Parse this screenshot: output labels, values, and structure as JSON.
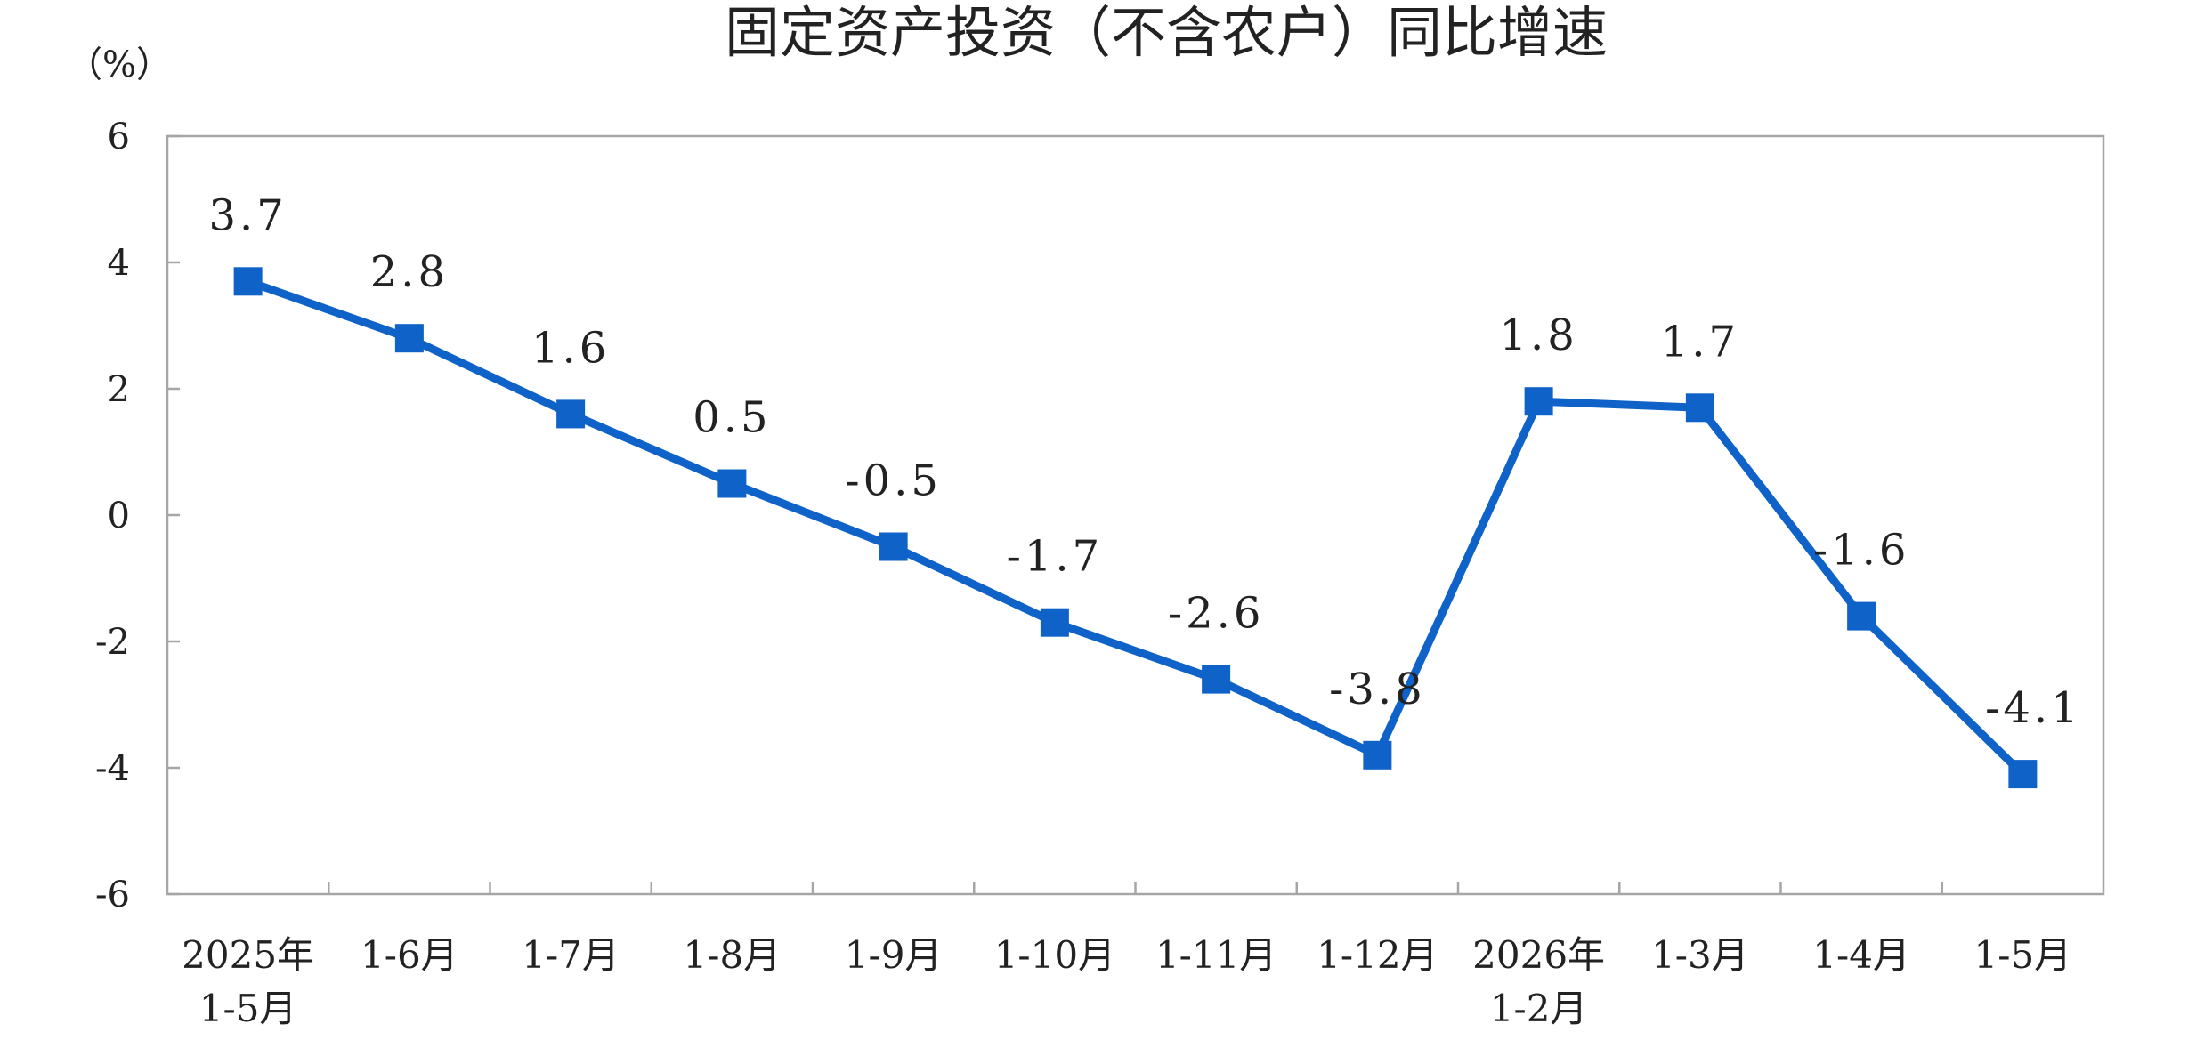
{
  "chart_data": {
    "type": "line",
    "title": "固定资产投资（不含农户）同比增速",
    "unit_label": "（%）",
    "categories": [
      [
        "2025年",
        "1-5月"
      ],
      [
        "1-6月"
      ],
      [
        "1-7月"
      ],
      [
        "1-8月"
      ],
      [
        "1-9月"
      ],
      [
        "1-10月"
      ],
      [
        "1-11月"
      ],
      [
        "1-12月"
      ],
      [
        "2026年",
        "1-2月"
      ],
      [
        "1-3月"
      ],
      [
        "1-4月"
      ],
      [
        "1-5月"
      ]
    ],
    "values": [
      3.7,
      2.8,
      1.6,
      0.5,
      -0.5,
      -1.7,
      -2.6,
      -3.8,
      1.8,
      1.7,
      -1.6,
      -4.1
    ],
    "data_labels": [
      "3.7",
      "2.8",
      "1.6",
      "0.5",
      "-0.5",
      "-1.7",
      "-2.6",
      "-3.8",
      "1.8",
      "1.7",
      "-1.6",
      "-4.1"
    ],
    "y_ticks": [
      6,
      4,
      2,
      0,
      -2,
      -4,
      -6
    ],
    "ylim": [
      -6,
      6
    ],
    "grid": false,
    "line_color": "#0F62C8",
    "axis_color": "#A6A6A6"
  }
}
